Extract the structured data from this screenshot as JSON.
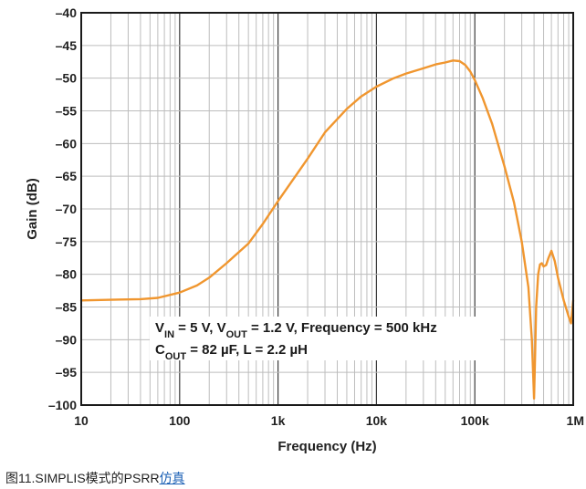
{
  "chart_data": {
    "type": "line",
    "xlabel": "Frequency (Hz)",
    "ylabel": "Gain (dB)",
    "x_scale": "log",
    "xlim": [
      10,
      1000000
    ],
    "ylim": [
      -100,
      -40
    ],
    "grid": true,
    "x_ticks": [
      {
        "value": 10,
        "label": "10"
      },
      {
        "value": 100,
        "label": "100"
      },
      {
        "value": 1000,
        "label": "1k"
      },
      {
        "value": 10000,
        "label": "10k"
      },
      {
        "value": 100000,
        "label": "100k"
      },
      {
        "value": 1000000,
        "label": "1M"
      }
    ],
    "y_ticks": [
      {
        "value": -40,
        "label": "–40"
      },
      {
        "value": -45,
        "label": "–45"
      },
      {
        "value": -50,
        "label": "–50"
      },
      {
        "value": -55,
        "label": "–55"
      },
      {
        "value": -60,
        "label": "–60"
      },
      {
        "value": -65,
        "label": "–65"
      },
      {
        "value": -70,
        "label": "–70"
      },
      {
        "value": -75,
        "label": "–75"
      },
      {
        "value": -80,
        "label": "–80"
      },
      {
        "value": -85,
        "label": "–85"
      },
      {
        "value": -90,
        "label": "–90"
      },
      {
        "value": -95,
        "label": "–95"
      },
      {
        "value": -100,
        "label": "–100"
      }
    ],
    "series": [
      {
        "color": "#f0962f",
        "x": [
          10,
          20,
          40,
          60,
          100,
          150,
          200,
          300,
          500,
          700,
          1000,
          1500,
          2000,
          3000,
          5000,
          7000,
          10000,
          15000,
          20000,
          30000,
          40000,
          50000,
          60000,
          70000,
          80000,
          90000,
          100000,
          120000,
          150000,
          200000,
          250000,
          300000,
          350000,
          380000,
          400000,
          410000,
          420000,
          440000,
          460000,
          480000,
          500000,
          530000,
          560000,
          600000,
          650000,
          700000,
          800000,
          900000,
          950000,
          1000000
        ],
        "y": [
          -84,
          -83.9,
          -83.8,
          -83.6,
          -82.8,
          -81.7,
          -80.5,
          -78.3,
          -75.3,
          -72.3,
          -68.8,
          -65,
          -62.3,
          -58.3,
          -54.7,
          -52.8,
          -51.3,
          -50,
          -49.3,
          -48.5,
          -47.9,
          -47.6,
          -47.3,
          -47.4,
          -48.0,
          -49.0,
          -50.3,
          -53,
          -57,
          -63.5,
          -69,
          -75,
          -82,
          -90,
          -99,
          -92,
          -85,
          -80,
          -78.5,
          -78.3,
          -78.8,
          -78.6,
          -77.5,
          -76.4,
          -78,
          -80.5,
          -84,
          -86.5,
          -87.5,
          -84
        ]
      }
    ],
    "annotation": {
      "line1": [
        {
          "t": "V",
          "sub": false
        },
        {
          "t": "IN",
          "sub": true
        },
        {
          "t": " = 5 V, V",
          "sub": false
        },
        {
          "t": "OUT",
          "sub": true
        },
        {
          "t": " = 1.2 V, Frequency = 500 kHz",
          "sub": false
        }
      ],
      "line2": [
        {
          "t": "C",
          "sub": false
        },
        {
          "t": "OUT",
          "sub": true
        },
        {
          "t": " = 82 µF, L = 2.2 µH",
          "sub": false
        }
      ]
    },
    "colors": {
      "grid_major": "#3a3a3a",
      "grid_minor": "#bdbdbd",
      "line": "#f0962f",
      "frame": "#1a1a1a"
    }
  },
  "caption": {
    "prefix": "图11.SIMPLIS模式的PSRR",
    "link": "仿真"
  }
}
